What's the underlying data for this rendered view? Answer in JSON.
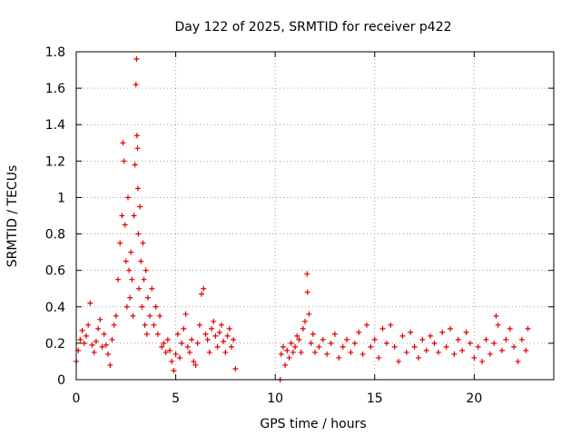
{
  "chart_data": {
    "type": "scatter",
    "title": "Day 122 of 2025, SRMTID for receiver p422",
    "xlabel": "GPS time / hours",
    "ylabel": "SRMTID / TECUs",
    "xlim": [
      0,
      24
    ],
    "ylim": [
      0,
      1.8
    ],
    "xticks": [
      0,
      5,
      10,
      15,
      20
    ],
    "xtick_labels": [
      "0",
      "5",
      "10",
      "15",
      "20"
    ],
    "yticks": [
      0,
      0.2,
      0.4,
      0.6,
      0.8,
      1.0,
      1.2,
      1.4,
      1.6,
      1.8
    ],
    "ytick_labels": [
      "0",
      "0.2",
      "0.4",
      "0.6",
      "0.8",
      "1",
      "1.2",
      "1.4",
      "1.6",
      "1.8"
    ],
    "grid": true,
    "marker": "+",
    "series": [
      {
        "name": "SRMTID",
        "color": "#e00000",
        "points": [
          [
            0.0,
            0.1
          ],
          [
            0.1,
            0.16
          ],
          [
            0.2,
            0.22
          ],
          [
            0.3,
            0.27
          ],
          [
            0.4,
            0.2
          ],
          [
            0.5,
            0.24
          ],
          [
            0.6,
            0.3
          ],
          [
            0.7,
            0.42
          ],
          [
            0.8,
            0.19
          ],
          [
            0.9,
            0.15
          ],
          [
            1.0,
            0.21
          ],
          [
            1.1,
            0.28
          ],
          [
            1.2,
            0.33
          ],
          [
            1.3,
            0.18
          ],
          [
            1.4,
            0.25
          ],
          [
            1.5,
            0.19
          ],
          [
            1.6,
            0.14
          ],
          [
            1.7,
            0.08
          ],
          [
            1.8,
            0.22
          ],
          [
            1.9,
            0.3
          ],
          [
            2.0,
            0.35
          ],
          [
            2.1,
            0.55
          ],
          [
            2.2,
            0.75
          ],
          [
            2.3,
            0.9
          ],
          [
            2.35,
            1.3
          ],
          [
            2.4,
            1.2
          ],
          [
            2.45,
            0.85
          ],
          [
            2.5,
            0.65
          ],
          [
            2.55,
            0.4
          ],
          [
            2.6,
            1.0
          ],
          [
            2.65,
            0.6
          ],
          [
            2.7,
            0.45
          ],
          [
            2.75,
            0.7
          ],
          [
            2.8,
            0.55
          ],
          [
            2.85,
            0.35
          ],
          [
            2.9,
            0.9
          ],
          [
            2.95,
            1.18
          ],
          [
            3.0,
            1.62
          ],
          [
            3.03,
            1.76
          ],
          [
            3.05,
            1.34
          ],
          [
            3.08,
            1.27
          ],
          [
            3.1,
            1.05
          ],
          [
            3.12,
            0.8
          ],
          [
            3.15,
            0.5
          ],
          [
            3.2,
            0.95
          ],
          [
            3.25,
            0.65
          ],
          [
            3.3,
            0.4
          ],
          [
            3.35,
            0.75
          ],
          [
            3.4,
            0.55
          ],
          [
            3.45,
            0.3
          ],
          [
            3.5,
            0.6
          ],
          [
            3.55,
            0.25
          ],
          [
            3.6,
            0.45
          ],
          [
            3.7,
            0.35
          ],
          [
            3.8,
            0.5
          ],
          [
            3.9,
            0.3
          ],
          [
            4.0,
            0.4
          ],
          [
            4.1,
            0.25
          ],
          [
            4.2,
            0.35
          ],
          [
            4.3,
            0.18
          ],
          [
            4.4,
            0.2
          ],
          [
            4.5,
            0.15
          ],
          [
            4.6,
            0.22
          ],
          [
            4.7,
            0.16
          ],
          [
            4.8,
            0.1
          ],
          [
            4.9,
            0.05
          ],
          [
            5.0,
            0.14
          ],
          [
            5.1,
            0.25
          ],
          [
            5.2,
            0.12
          ],
          [
            5.3,
            0.2
          ],
          [
            5.4,
            0.28
          ],
          [
            5.5,
            0.36
          ],
          [
            5.6,
            0.18
          ],
          [
            5.7,
            0.15
          ],
          [
            5.8,
            0.22
          ],
          [
            5.9,
            0.1
          ],
          [
            6.0,
            0.08
          ],
          [
            6.1,
            0.2
          ],
          [
            6.2,
            0.3
          ],
          [
            6.3,
            0.47
          ],
          [
            6.4,
            0.5
          ],
          [
            6.5,
            0.25
          ],
          [
            6.6,
            0.22
          ],
          [
            6.7,
            0.15
          ],
          [
            6.8,
            0.28
          ],
          [
            6.9,
            0.32
          ],
          [
            7.0,
            0.24
          ],
          [
            7.1,
            0.18
          ],
          [
            7.2,
            0.26
          ],
          [
            7.3,
            0.3
          ],
          [
            7.4,
            0.21
          ],
          [
            7.5,
            0.15
          ],
          [
            7.6,
            0.24
          ],
          [
            7.7,
            0.28
          ],
          [
            7.8,
            0.18
          ],
          [
            7.9,
            0.22
          ],
          [
            8.0,
            0.06
          ],
          [
            10.25,
            0.0
          ],
          [
            10.3,
            0.14
          ],
          [
            10.4,
            0.18
          ],
          [
            10.5,
            0.08
          ],
          [
            10.6,
            0.16
          ],
          [
            10.7,
            0.12
          ],
          [
            10.8,
            0.2
          ],
          [
            10.9,
            0.15
          ],
          [
            11.0,
            0.18
          ],
          [
            11.1,
            0.24
          ],
          [
            11.2,
            0.22
          ],
          [
            11.3,
            0.15
          ],
          [
            11.4,
            0.28
          ],
          [
            11.5,
            0.32
          ],
          [
            11.6,
            0.58
          ],
          [
            11.62,
            0.48
          ],
          [
            11.7,
            0.36
          ],
          [
            11.8,
            0.2
          ],
          [
            11.9,
            0.25
          ],
          [
            12.0,
            0.15
          ],
          [
            12.2,
            0.18
          ],
          [
            12.4,
            0.22
          ],
          [
            12.6,
            0.14
          ],
          [
            12.8,
            0.2
          ],
          [
            13.0,
            0.25
          ],
          [
            13.2,
            0.12
          ],
          [
            13.4,
            0.18
          ],
          [
            13.6,
            0.22
          ],
          [
            13.8,
            0.15
          ],
          [
            14.0,
            0.2
          ],
          [
            14.2,
            0.26
          ],
          [
            14.4,
            0.14
          ],
          [
            14.6,
            0.3
          ],
          [
            14.8,
            0.18
          ],
          [
            15.0,
            0.22
          ],
          [
            15.2,
            0.12
          ],
          [
            15.4,
            0.28
          ],
          [
            15.6,
            0.2
          ],
          [
            15.8,
            0.3
          ],
          [
            16.0,
            0.18
          ],
          [
            16.2,
            0.1
          ],
          [
            16.4,
            0.24
          ],
          [
            16.6,
            0.15
          ],
          [
            16.8,
            0.26
          ],
          [
            17.0,
            0.18
          ],
          [
            17.2,
            0.12
          ],
          [
            17.4,
            0.22
          ],
          [
            17.6,
            0.16
          ],
          [
            17.8,
            0.24
          ],
          [
            18.0,
            0.2
          ],
          [
            18.2,
            0.15
          ],
          [
            18.4,
            0.26
          ],
          [
            18.6,
            0.18
          ],
          [
            18.8,
            0.28
          ],
          [
            19.0,
            0.14
          ],
          [
            19.2,
            0.22
          ],
          [
            19.4,
            0.16
          ],
          [
            19.6,
            0.26
          ],
          [
            19.8,
            0.2
          ],
          [
            20.0,
            0.12
          ],
          [
            20.2,
            0.18
          ],
          [
            20.4,
            0.1
          ],
          [
            20.6,
            0.22
          ],
          [
            20.8,
            0.14
          ],
          [
            21.0,
            0.2
          ],
          [
            21.1,
            0.35
          ],
          [
            21.2,
            0.3
          ],
          [
            21.4,
            0.16
          ],
          [
            21.6,
            0.22
          ],
          [
            21.8,
            0.28
          ],
          [
            22.0,
            0.18
          ],
          [
            22.2,
            0.1
          ],
          [
            22.4,
            0.22
          ],
          [
            22.6,
            0.16
          ],
          [
            22.7,
            0.28
          ]
        ]
      }
    ]
  }
}
